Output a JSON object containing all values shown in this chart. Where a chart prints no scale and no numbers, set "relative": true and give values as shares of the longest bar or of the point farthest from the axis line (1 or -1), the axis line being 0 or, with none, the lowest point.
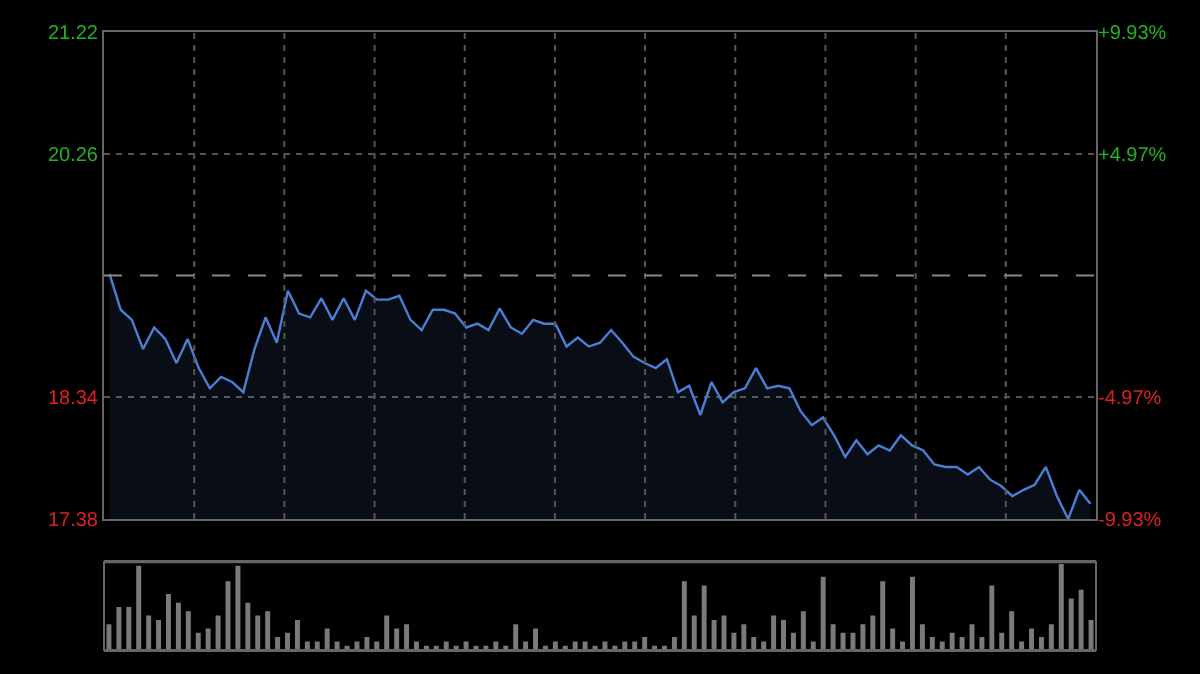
{
  "chart_data": [
    {
      "type": "area",
      "categories": [
        null,
        null,
        null,
        null,
        null,
        null,
        null,
        null,
        null,
        null,
        null,
        null,
        null,
        null,
        null,
        null,
        null,
        null,
        null,
        null,
        null,
        null,
        null,
        null,
        null,
        null,
        null,
        null,
        null,
        null,
        null,
        null,
        null,
        null,
        null,
        null,
        null,
        null,
        null,
        null,
        null,
        null,
        null,
        null,
        null,
        null,
        null,
        null,
        null,
        null,
        null,
        null,
        null,
        null,
        null,
        null,
        null,
        null,
        null,
        null,
        null,
        null,
        null,
        null,
        null,
        null,
        null,
        null,
        null,
        null,
        null,
        null,
        null,
        null,
        null,
        null,
        null,
        null,
        null,
        null,
        null,
        null,
        null,
        null,
        null,
        null,
        null,
        null,
        null
      ],
      "series": [
        {
          "color": "#4a7fd4",
          "values": [
            19.31,
            19.03,
            18.95,
            18.72,
            18.89,
            18.8,
            18.61,
            18.8,
            18.57,
            18.41,
            18.5,
            18.46,
            18.38,
            18.72,
            18.97,
            18.77,
            19.18,
            19.0,
            18.97,
            19.12,
            18.95,
            19.12,
            18.95,
            19.18,
            19.11,
            19.11,
            19.14,
            18.95,
            18.87,
            19.03,
            19.03,
            19.0,
            18.89,
            18.92,
            18.87,
            19.04,
            18.89,
            18.84,
            18.95,
            18.92,
            18.92,
            18.74,
            18.81,
            18.74,
            18.77,
            18.87,
            18.77,
            18.66,
            18.61,
            18.57,
            18.64,
            18.38,
            18.43,
            18.2,
            18.46,
            18.3,
            18.38,
            18.41,
            18.57,
            18.41,
            18.43,
            18.41,
            18.23,
            18.12,
            18.18,
            18.04,
            17.87,
            18.0,
            17.89,
            17.96,
            17.92,
            18.04,
            17.96,
            17.92,
            17.81,
            17.79,
            17.79,
            17.73,
            17.79,
            17.69,
            17.64,
            17.56,
            17.61,
            17.65,
            17.79,
            17.56,
            17.38,
            17.61,
            17.5
          ]
        }
      ],
      "ylim": [
        17.38,
        21.22
      ],
      "yticks": [
        17.38,
        18.34,
        20.26,
        21.22
      ],
      "y2lim": [
        -9.93,
        9.93
      ],
      "y2ticks": [
        {
          "value": -9.93,
          "label": "-9.93%"
        },
        {
          "value": -4.97,
          "label": "-4.97%"
        },
        {
          "value": 4.97,
          "label": "+4.97%"
        },
        {
          "value": 9.93,
          "label": "+9.93%"
        }
      ],
      "ref_lines": [
        {
          "axis": "y",
          "value": 19.3,
          "line_style": "dashed",
          "color": "#888888"
        }
      ],
      "grid": true
    },
    {
      "type": "bar",
      "relative": true,
      "color": "#7a7a7a",
      "grid": false,
      "categories": [
        null,
        null,
        null,
        null,
        null,
        null,
        null,
        null,
        null,
        null,
        null,
        null,
        null,
        null,
        null,
        null,
        null,
        null,
        null,
        null,
        null,
        null,
        null,
        null,
        null,
        null,
        null,
        null,
        null,
        null,
        null,
        null,
        null,
        null,
        null,
        null,
        null,
        null,
        null,
        null,
        null,
        null,
        null,
        null,
        null,
        null,
        null,
        null,
        null,
        null,
        null,
        null,
        null,
        null,
        null,
        null,
        null,
        null,
        null,
        null,
        null,
        null,
        null,
        null,
        null,
        null,
        null,
        null,
        null,
        null,
        null,
        null,
        null,
        null,
        null,
        null,
        null,
        null,
        null,
        null,
        null,
        null,
        null,
        null,
        null,
        null,
        null,
        null,
        null,
        null,
        null,
        null,
        null,
        null,
        null,
        null,
        null,
        null,
        null,
        null
      ],
      "values": [
        0.3,
        0.5,
        0.5,
        0.98,
        0.4,
        0.35,
        0.65,
        0.55,
        0.45,
        0.2,
        0.25,
        0.4,
        0.8,
        0.98,
        0.55,
        0.4,
        0.45,
        0.15,
        0.2,
        0.35,
        0.1,
        0.1,
        0.25,
        0.1,
        0.05,
        0.1,
        0.15,
        0.1,
        0.4,
        0.25,
        0.3,
        0.1,
        0.05,
        0.05,
        0.1,
        0.05,
        0.1,
        0.05,
        0.05,
        0.1,
        0.05,
        0.3,
        0.1,
        0.25,
        0.05,
        0.1,
        0.05,
        0.1,
        0.1,
        0.05,
        0.1,
        0.05,
        0.1,
        0.1,
        0.15,
        0.05,
        0.05,
        0.15,
        0.8,
        0.4,
        0.75,
        0.35,
        0.4,
        0.2,
        0.3,
        0.15,
        0.1,
        0.4,
        0.35,
        0.2,
        0.45,
        0.1,
        0.85,
        0.3,
        0.2,
        0.2,
        0.3,
        0.4,
        0.8,
        0.25,
        0.1,
        0.85,
        0.3,
        0.15,
        0.1,
        0.2,
        0.15,
        0.3,
        0.15,
        0.75,
        0.2,
        0.45,
        0.1,
        0.25,
        0.15,
        0.3,
        1,
        0.6,
        0.7,
        0.35
      ]
    }
  ]
}
